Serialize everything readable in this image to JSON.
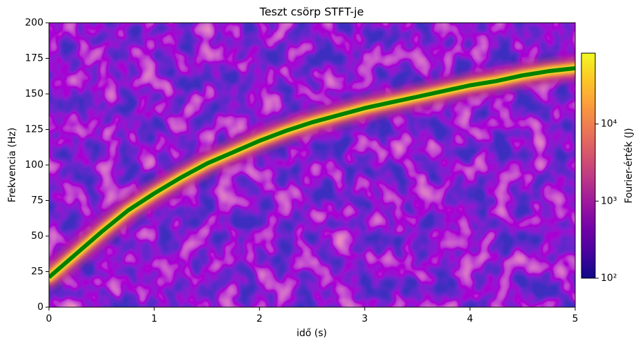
{
  "chart_data": {
    "type": "spectrogram",
    "title": "Teszt csörp STFT-je",
    "x_label": "idő (s)",
    "y_label": "Frekvencia (Hz)",
    "colorbar_label": "Fourier-érték (J)",
    "colormap": "plasma",
    "x": [
      0,
      0.25,
      0.5,
      0.75,
      1,
      1.25,
      1.5,
      1.75,
      2,
      2.25,
      2.5,
      2.75,
      3,
      3.25,
      3.5,
      3.75,
      4,
      4.25,
      4.5,
      4.75,
      5
    ],
    "series": [
      {
        "color": "green",
        "values": [
          21,
          37,
          53,
          68,
          80,
          91,
          101,
          109,
          117,
          124,
          130,
          135,
          140,
          144,
          148,
          152,
          156,
          159,
          163,
          166,
          168
        ]
      }
    ],
    "xlim": [
      0,
      5
    ],
    "xticks": [
      0,
      1,
      2,
      3,
      4,
      5
    ],
    "ylim": [
      0,
      200
    ],
    "yticks": [
      0,
      25,
      50,
      75,
      100,
      125,
      150,
      175,
      200
    ],
    "clim": [
      100,
      83000
    ],
    "clog": true,
    "cticks": [
      {
        "value": 100,
        "label": "10²"
      },
      {
        "value": 1000,
        "label": "10³"
      },
      {
        "value": 10000,
        "label": "10⁴"
      }
    ]
  }
}
